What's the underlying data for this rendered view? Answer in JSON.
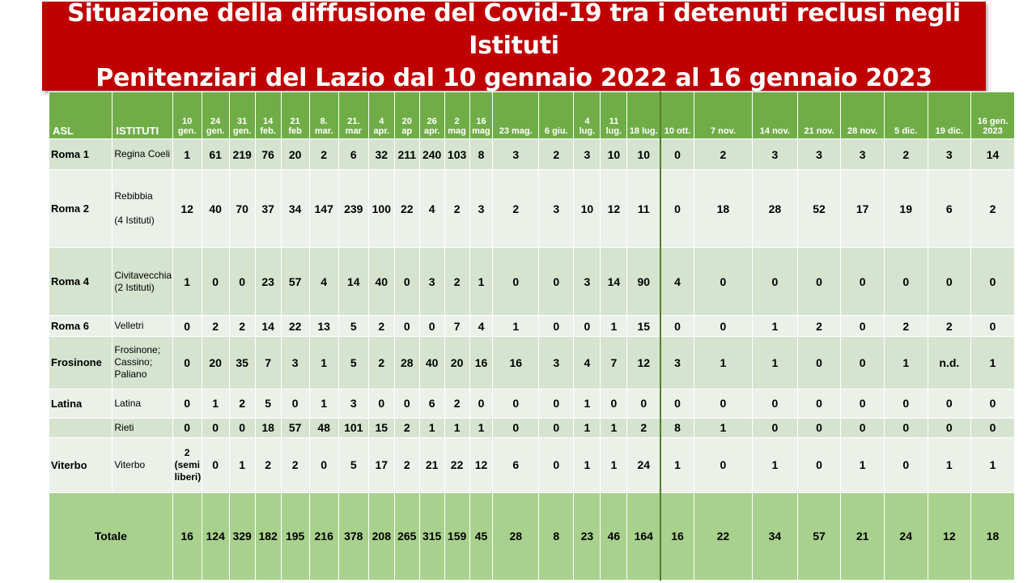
{
  "title_line1": "Situazione della diffusione del Covid-19 tra i detenuti reclusi negli Istituti",
  "title_line2": "Penitenziari  del Lazio dal 10 gennaio 2022 al 16 gennaio 2023",
  "headers": {
    "asl": "ASL",
    "istituti": "ISTITUTI",
    "dates": [
      "10 gen.",
      "24 gen.",
      "31 gen.",
      "14 feb.",
      "21 feb",
      "8. mar.",
      "21. mar",
      "4 apr.",
      "20 ap",
      "26 apr.",
      "2 mag",
      "16 mag",
      "23 mag.",
      "6 giu.",
      "4 lug.",
      "11 lug.",
      "18 lug.",
      "10 ott.",
      "7 nov.",
      "14 nov.",
      "21 nov.",
      "28 nov.",
      "5 dic.",
      "19 dic.",
      "16 gen. 2023"
    ]
  },
  "rows": [
    {
      "asl": "Roma 1",
      "istituti": "Regina Coeli",
      "values": [
        "1",
        "61",
        "219",
        "76",
        "20",
        "2",
        "6",
        "32",
        "211",
        "240",
        "103",
        "8",
        "3",
        "2",
        "3",
        "10",
        "10",
        "0",
        "2",
        "3",
        "3",
        "3",
        "2",
        "3",
        "14"
      ]
    },
    {
      "asl": "Roma 2",
      "istituti": "Rebibbia\n\n(4 Istituti)",
      "values": [
        "12",
        "40",
        "70",
        "37",
        "34",
        "147",
        "239",
        "100",
        "22",
        "4",
        "2",
        "3",
        "2",
        "3",
        "10",
        "12",
        "11",
        "0",
        "18",
        "28",
        "52",
        "17",
        "19",
        "6",
        "2"
      ]
    },
    {
      "asl": "Roma 4",
      "istituti": "Civitavecchia\n(2 Istituti)",
      "values": [
        "1",
        "0",
        "0",
        "23",
        "57",
        "4",
        "14",
        "40",
        "0",
        "3",
        "2",
        "1",
        "0",
        "0",
        "3",
        "14",
        "90",
        "4",
        "0",
        "0",
        "0",
        "0",
        "0",
        "0",
        "0"
      ]
    },
    {
      "asl": "Roma 6",
      "istituti": "Velletri",
      "values": [
        "0",
        "2",
        "2",
        "14",
        "22",
        "13",
        "5",
        "2",
        "0",
        "0",
        "7",
        "4",
        "1",
        "0",
        "0",
        "1",
        "15",
        "0",
        "0",
        "1",
        "2",
        "0",
        "2",
        "2",
        "0"
      ]
    },
    {
      "asl": "Frosinone",
      "istituti": "Frosinone; Cassino; Paliano",
      "values": [
        "0",
        "20",
        "35",
        "7",
        "3",
        "1",
        "5",
        "2",
        "28",
        "40",
        "20",
        "16",
        "16",
        "3",
        "4",
        "7",
        "12",
        "3",
        "1",
        "1",
        "0",
        "0",
        "1",
        "n.d.",
        "1"
      ]
    },
    {
      "asl": "Latina",
      "istituti": "Latina",
      "values": [
        "0",
        "1",
        "2",
        "5",
        "0",
        "1",
        "3",
        "0",
        "0",
        "6",
        "2",
        "0",
        "0",
        "0",
        "1",
        "0",
        "0",
        "0",
        "0",
        "0",
        "0",
        "0",
        "0",
        "0",
        "0"
      ]
    },
    {
      "asl": "",
      "istituti": "Rieti",
      "values": [
        "0",
        "0",
        "0",
        "18",
        "57",
        "48",
        "101",
        "15",
        "2",
        "1",
        "1",
        "1",
        "0",
        "0",
        "1",
        "1",
        "2",
        "8",
        "1",
        "0",
        "0",
        "0",
        "0",
        "0",
        "0"
      ]
    },
    {
      "asl": "Viterbo",
      "istituti": "Viterbo",
      "values": [
        "2 (semi liberi)",
        "0",
        "1",
        "2",
        "2",
        "0",
        "5",
        "17",
        "2",
        "21",
        "22",
        "12",
        "6",
        "0",
        "1",
        "1",
        "24",
        "1",
        "0",
        "1",
        "0",
        "1",
        "0",
        "1",
        "1"
      ]
    }
  ],
  "total": {
    "label": "Totale",
    "values": [
      "16",
      "124",
      "329",
      "182",
      "195",
      "216",
      "378",
      "208",
      "265",
      "315",
      "159",
      "45",
      "28",
      "8",
      "23",
      "46",
      "164",
      "16",
      "22",
      "34",
      "57",
      "21",
      "24",
      "12",
      "18"
    ]
  }
}
